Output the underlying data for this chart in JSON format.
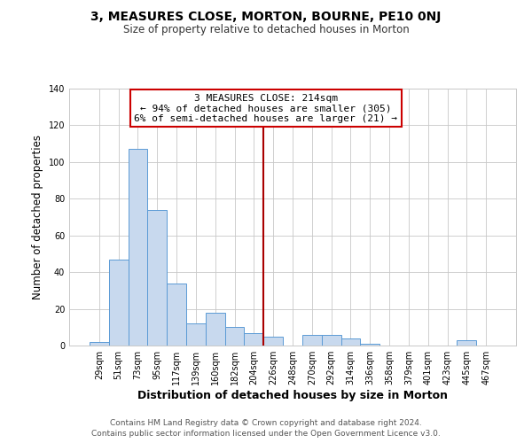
{
  "title": "3, MEASURES CLOSE, MORTON, BOURNE, PE10 0NJ",
  "subtitle": "Size of property relative to detached houses in Morton",
  "xlabel": "Distribution of detached houses by size in Morton",
  "ylabel": "Number of detached properties",
  "categories": [
    "29sqm",
    "51sqm",
    "73sqm",
    "95sqm",
    "117sqm",
    "139sqm",
    "160sqm",
    "182sqm",
    "204sqm",
    "226sqm",
    "248sqm",
    "270sqm",
    "292sqm",
    "314sqm",
    "336sqm",
    "358sqm",
    "379sqm",
    "401sqm",
    "423sqm",
    "445sqm",
    "467sqm"
  ],
  "values": [
    2,
    47,
    107,
    74,
    34,
    12,
    18,
    10,
    7,
    5,
    0,
    6,
    6,
    4,
    1,
    0,
    0,
    0,
    0,
    3,
    0
  ],
  "bar_color": "#c8d9ee",
  "bar_edge_color": "#5b9bd5",
  "vline_x": 8.5,
  "vline_color": "#aa0000",
  "annotation_title": "3 MEASURES CLOSE: 214sqm",
  "annotation_line1": "← 94% of detached houses are smaller (305)",
  "annotation_line2": "6% of semi-detached houses are larger (21) →",
  "annotation_box_color": "#ffffff",
  "annotation_box_edgecolor": "#cc0000",
  "ylim": [
    0,
    140
  ],
  "yticks": [
    0,
    20,
    40,
    60,
    80,
    100,
    120,
    140
  ],
  "footnote1": "Contains HM Land Registry data © Crown copyright and database right 2024.",
  "footnote2": "Contains public sector information licensed under the Open Government Licence v3.0.",
  "background_color": "#ffffff",
  "grid_color": "#c8c8c8"
}
